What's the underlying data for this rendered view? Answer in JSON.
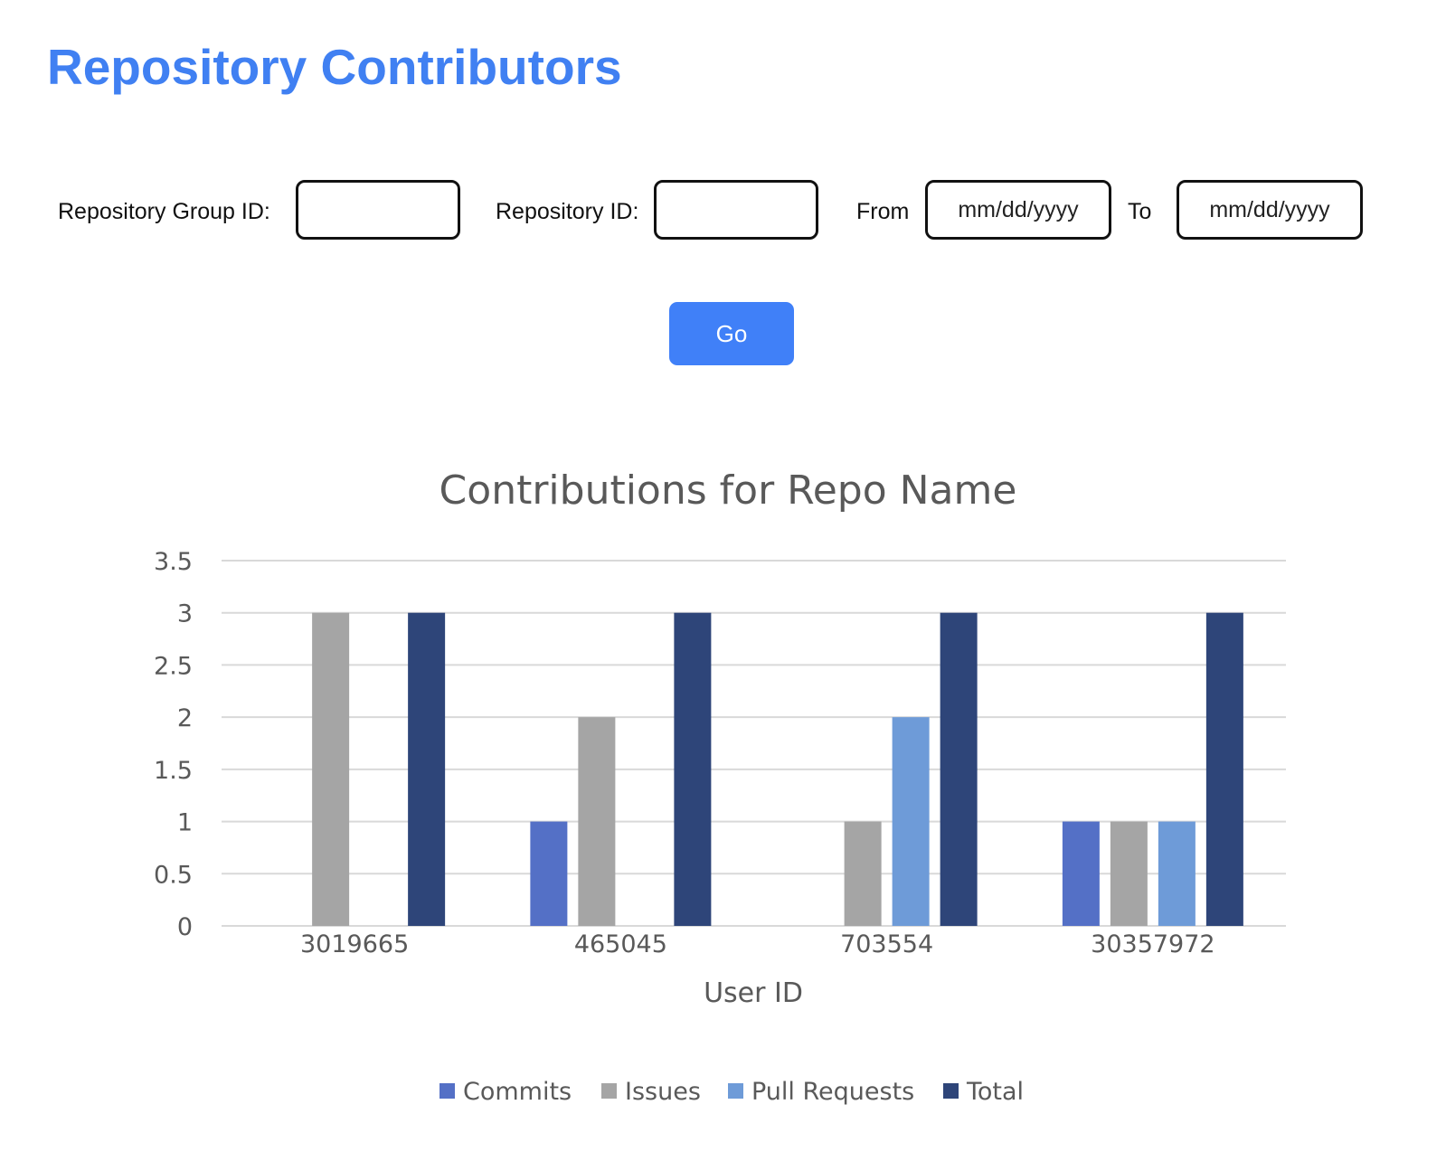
{
  "header": {
    "title": "Repository Contributors"
  },
  "form": {
    "repo_group_label": "Repository Group ID:",
    "repo_group_value": "",
    "repo_id_label": "Repository ID:",
    "repo_id_value": "",
    "from_label": "From",
    "from_placeholder": "mm/dd/yyyy",
    "to_label": "To",
    "to_placeholder": "mm/dd/yyyy",
    "go_label": "Go"
  },
  "colors": {
    "accent": "#4080f2",
    "button": "#4080f8"
  },
  "chart_data": {
    "type": "bar",
    "title": "Contributions for Repo Name",
    "xlabel": "User ID",
    "ylabel": "",
    "ylim": [
      0,
      3.5
    ],
    "yticks": [
      "0",
      "0.5",
      "1",
      "1.5",
      "2",
      "2.5",
      "3",
      "3.5"
    ],
    "grid": true,
    "legend_position": "bottom",
    "categories": [
      "3019665",
      "465045",
      "703554",
      "30357972"
    ],
    "series": [
      {
        "name": "Commits",
        "color": "#5470c6",
        "values": [
          0,
          1,
          0,
          1
        ]
      },
      {
        "name": "Issues",
        "color": "#a5a5a5",
        "values": [
          3,
          2,
          1,
          1
        ]
      },
      {
        "name": "Pull Requests",
        "color": "#6e9bd8",
        "values": [
          0,
          0,
          2,
          1
        ]
      },
      {
        "name": "Total",
        "color": "#2e4579",
        "values": [
          3,
          3,
          3,
          3
        ]
      }
    ]
  }
}
